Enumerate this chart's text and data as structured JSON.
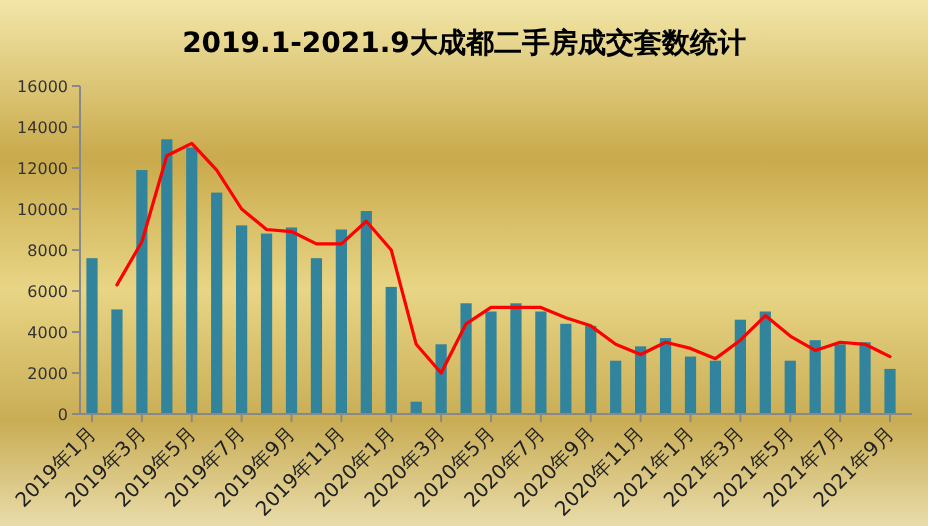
{
  "chart_data": {
    "type": "bar",
    "title": "2019.1-2021.9大成都二手房成交套数统计",
    "categories": [
      "2019年1月",
      null,
      "2019年3月",
      null,
      "2019年5月",
      null,
      "2019年7月",
      null,
      "2019年9月",
      null,
      "2019年11月",
      null,
      "2020年1月",
      null,
      "2020年3月",
      null,
      "2020年5月",
      null,
      "2020年7月",
      null,
      "2020年9月",
      null,
      "2020年11月",
      null,
      "2021年1月",
      null,
      "2021年3月",
      null,
      "2021年5月",
      null,
      "2021年7月",
      null,
      "2021年9月"
    ],
    "series": [
      {
        "color": "#31849b",
        "values": [
          7600,
          5100,
          11900,
          13400,
          13000,
          10800,
          9200,
          8800,
          9100,
          7600,
          9000,
          9900,
          6200,
          600,
          3400,
          5400,
          5000,
          5400,
          5000,
          4400,
          4300,
          2600,
          3300,
          3700,
          2800,
          2600,
          4600,
          5000,
          2600,
          3600,
          3400,
          3500,
          2200
        ]
      },
      {
        "type": "line",
        "color": "#ff0000",
        "values": [
          null,
          6300,
          8400,
          12600,
          13200,
          11900,
          10000,
          9000,
          8900,
          8300,
          8300,
          9400,
          8000,
          3400,
          2000,
          4400,
          5200,
          5200,
          5200,
          4700,
          4300,
          3400,
          2900,
          3500,
          3200,
          2700,
          3600,
          4800,
          3800,
          3100,
          3500,
          3400,
          2800
        ]
      }
    ],
    "ylim": [
      0,
      16000
    ],
    "yticks": [
      0,
      2000,
      4000,
      6000,
      8000,
      10000,
      12000,
      14000,
      16000
    ],
    "grid": false
  }
}
